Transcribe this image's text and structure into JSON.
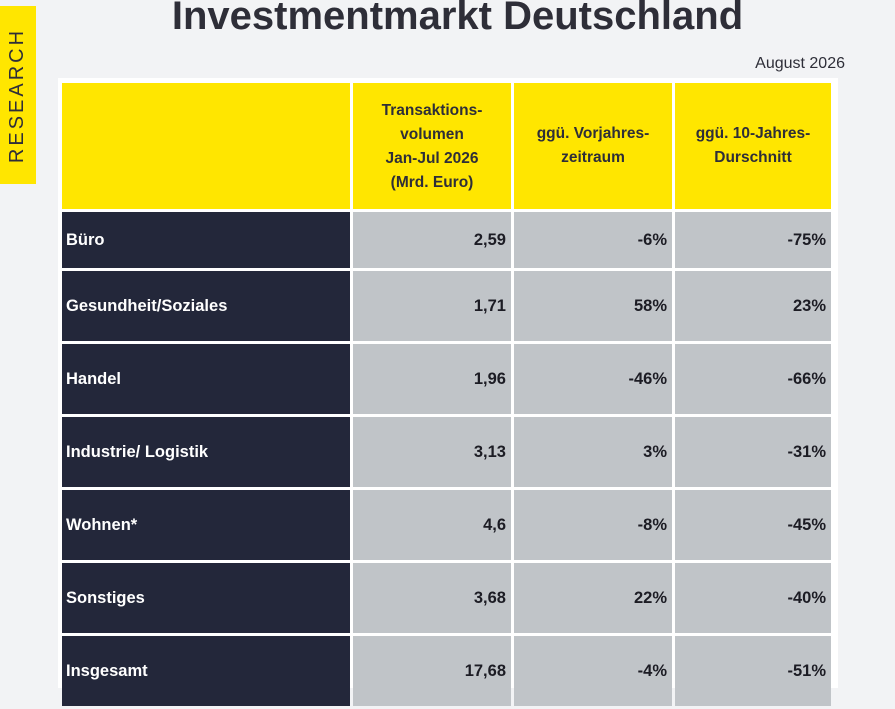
{
  "side_label": "RESEARCH",
  "title": "Investmentmarkt Deutschland",
  "date": "August 2026",
  "table": {
    "headers": [
      "",
      "Transaktions-\nvolumen\nJan-Jul 2026\n(Mrd. Euro)",
      "ggü. Vorjahres-\nzeitraum",
      "ggü. 10-Jahres-\nDurschnitt"
    ],
    "rows": [
      {
        "label": "Büro",
        "volume": "2,59",
        "yoy": "-6%",
        "avg10": "-75%"
      },
      {
        "label": "Gesundheit/Soziales",
        "volume": "1,71",
        "yoy": "58%",
        "avg10": "23%"
      },
      {
        "label": "Handel",
        "volume": "1,96",
        "yoy": "-46%",
        "avg10": "-66%"
      },
      {
        "label": "Industrie/ Logistik",
        "volume": "3,13",
        "yoy": "3%",
        "avg10": "-31%"
      },
      {
        "label": "Wohnen*",
        "volume": "4,6",
        "yoy": "-8%",
        "avg10": "-45%"
      },
      {
        "label": "Sonstiges",
        "volume": "3,68",
        "yoy": "22%",
        "avg10": "-40%"
      },
      {
        "label": "Insgesamt",
        "volume": "17,68",
        "yoy": "-4%",
        "avg10": "-51%"
      }
    ]
  }
}
